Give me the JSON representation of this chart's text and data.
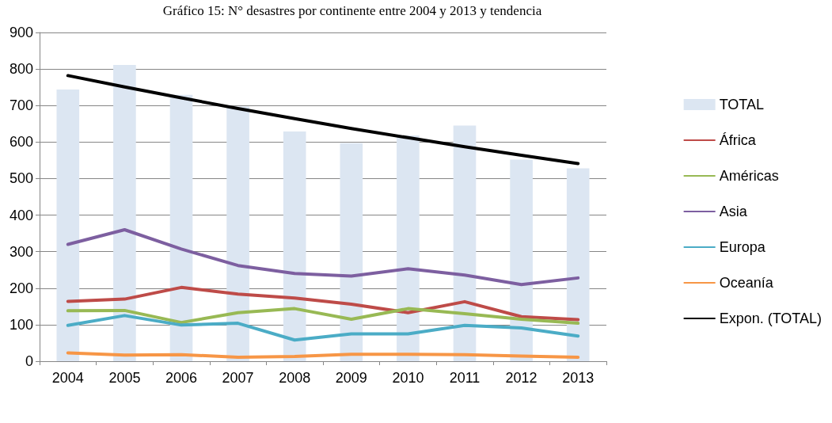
{
  "chart_data": {
    "type": "bar",
    "title": "Gráfico 15: N° desastres por continente entre 2004 y 2013 y tendencia",
    "categories": [
      "2004",
      "2005",
      "2006",
      "2007",
      "2008",
      "2009",
      "2010",
      "2011",
      "2012",
      "2013"
    ],
    "series": [
      {
        "name": "TOTAL",
        "type": "bar",
        "color": "#dce6f2",
        "values": [
          744,
          811,
          729,
          697,
          629,
          597,
          618,
          645,
          552,
          528
        ]
      },
      {
        "name": "África",
        "type": "line",
        "color": "#be4b48",
        "values": [
          164,
          170,
          202,
          184,
          173,
          156,
          133,
          163,
          122,
          114
        ]
      },
      {
        "name": "Américas",
        "type": "line",
        "color": "#98b954",
        "values": [
          138,
          139,
          106,
          133,
          144,
          115,
          144,
          130,
          115,
          104
        ]
      },
      {
        "name": "Asia",
        "type": "line",
        "color": "#7d5fa0",
        "values": [
          320,
          360,
          307,
          262,
          240,
          233,
          253,
          236,
          210,
          228
        ]
      },
      {
        "name": "Europa",
        "type": "line",
        "color": "#4bacc6",
        "values": [
          98,
          125,
          99,
          104,
          58,
          75,
          75,
          98,
          91,
          69
        ]
      },
      {
        "name": "Oceanía",
        "type": "line",
        "color": "#f79646",
        "values": [
          23,
          17,
          18,
          11,
          13,
          19,
          19,
          18,
          14,
          11
        ]
      },
      {
        "name": "Expon. (TOTAL)",
        "type": "line",
        "color": "#000000",
        "values": [
          782,
          751,
          721,
          692,
          664,
          637,
          612,
          587,
          564,
          541
        ]
      }
    ],
    "ylim": [
      0,
      900
    ],
    "yticks": [
      0,
      100,
      200,
      300,
      400,
      500,
      600,
      700,
      800,
      900
    ],
    "grid": "y",
    "legend": "right",
    "marker": "none",
    "line_style": "solid"
  }
}
